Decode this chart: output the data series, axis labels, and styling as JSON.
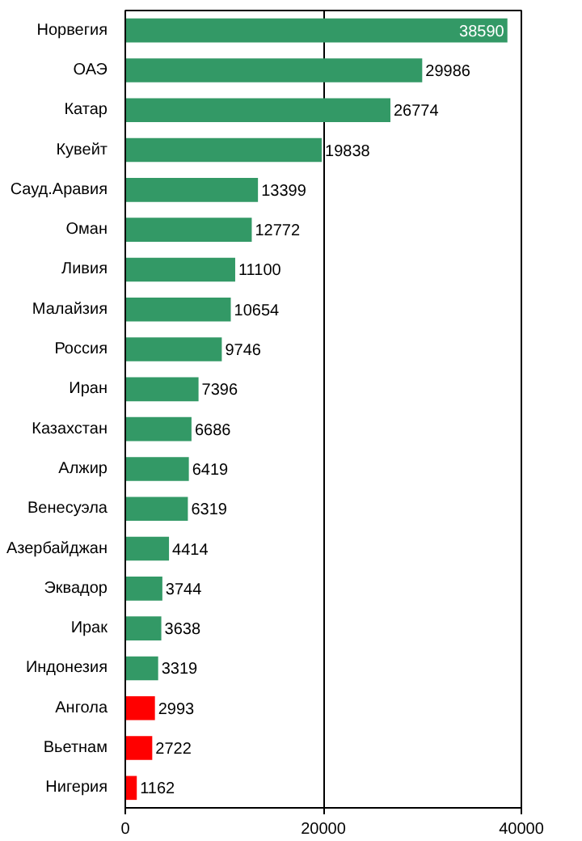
{
  "chart_data": {
    "type": "bar",
    "orientation": "horizontal",
    "categories": [
      "Норвегия",
      "ОАЭ",
      "Катар",
      "Кувейт",
      "Сауд.Аравия",
      "Оман",
      "Ливия",
      "Малайзия",
      "Россия",
      "Иран",
      "Казахстан",
      "Алжир",
      "Венесуэла",
      "Азербайджан",
      "Эквадор",
      "Ирак",
      "Индонезия",
      "Ангола",
      "Вьетнам",
      "Нигерия"
    ],
    "values": [
      38590,
      29986,
      26774,
      19838,
      13399,
      12772,
      11100,
      10654,
      9746,
      7396,
      6686,
      6419,
      6319,
      4414,
      3744,
      3638,
      3319,
      2993,
      2722,
      1162
    ],
    "colors": [
      "#339966",
      "#339966",
      "#339966",
      "#339966",
      "#339966",
      "#339966",
      "#339966",
      "#339966",
      "#339966",
      "#339966",
      "#339966",
      "#339966",
      "#339966",
      "#339966",
      "#339966",
      "#339966",
      "#339966",
      "#ff0000",
      "#ff0000",
      "#ff0000"
    ],
    "xlim": [
      0,
      40000
    ],
    "xticks": [
      0,
      20000,
      40000
    ],
    "grid": "x",
    "data_labels": true
  }
}
